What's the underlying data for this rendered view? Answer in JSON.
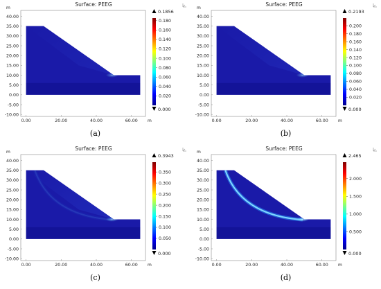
{
  "plots": [
    {
      "title": "Surface: PEEG",
      "caption": "(a)",
      "max_label": "0.1856",
      "legend_ticks": [
        "0.180",
        "0.160",
        "0.140",
        "0.120",
        "0.100",
        "0.080",
        "0.060",
        "0.040",
        "0.020"
      ],
      "min_label": "0.000",
      "peak_intensity": 0.35,
      "band_intensity": 0.0,
      "wedge_intensity": 0.12
    },
    {
      "title": "Surface: PEEG",
      "caption": "(b)",
      "max_label": "0.2193",
      "legend_ticks": [
        "0.200",
        "0.180",
        "0.160",
        "0.140",
        "0.120",
        "0.100",
        "0.080",
        "0.060",
        "0.040",
        "0.020"
      ],
      "min_label": "0.000",
      "peak_intensity": 0.38,
      "band_intensity": 0.0,
      "wedge_intensity": 0.14
    },
    {
      "title": "Surface: PEEG",
      "caption": "(c)",
      "max_label": "0.3943",
      "legend_ticks": [
        "0.350",
        "0.300",
        "0.250",
        "0.200",
        "0.150",
        "0.100",
        "0.050"
      ],
      "min_label": "0.000",
      "peak_intensity": 0.42,
      "band_intensity": 0.12,
      "wedge_intensity": 0.18
    },
    {
      "title": "Surface: PEEG",
      "caption": "(d)",
      "max_label": "2.465",
      "legend_ticks": [
        "2.000",
        "1.500",
        "1.000",
        "0.500"
      ],
      "min_label": "0.000",
      "peak_intensity": 0.6,
      "band_intensity": 1.0,
      "wedge_intensity": 0.0
    }
  ],
  "y_ticks": [
    "40.00",
    "35.00",
    "30.00",
    "25.00",
    "20.00",
    "15.00",
    "10.00",
    "5.00",
    "0.00",
    "-5.00",
    "-10.00"
  ],
  "x_ticks": [
    "0.00",
    "20.00",
    "40.00",
    "60.00"
  ],
  "y_unit": "m",
  "x_unit": "m",
  "corner_icon": "axes-orientation-icon",
  "colors": {
    "slope_fill": "#1a1aa8",
    "slope_dark": "#0a0a7a",
    "band": "#7fd8ff",
    "peak": "#cfeeff"
  }
}
